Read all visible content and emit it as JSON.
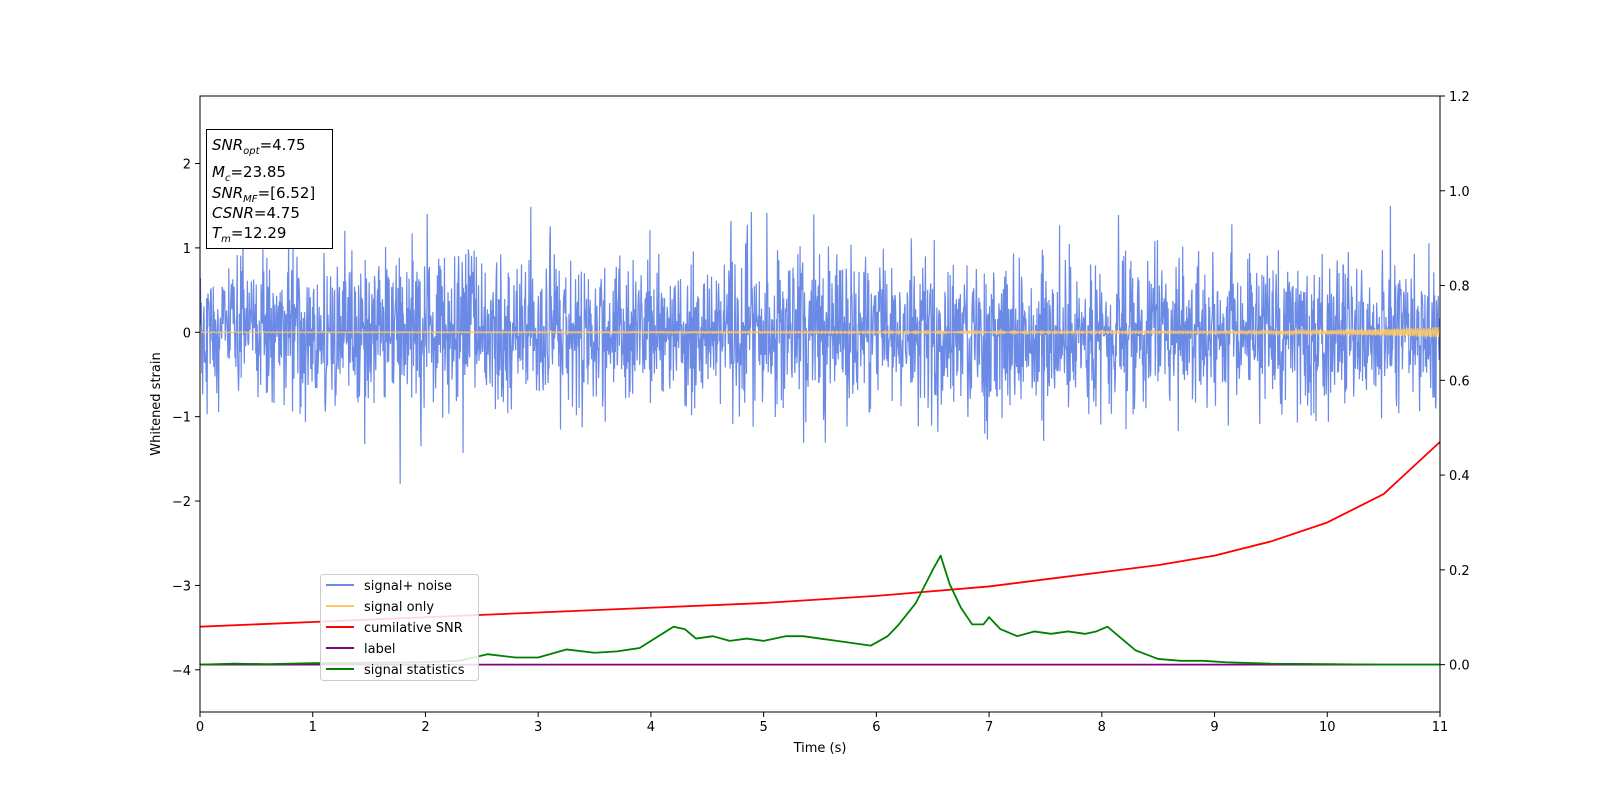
{
  "chart_data": {
    "type": "line",
    "xlabel": "Time (s)",
    "ylabel": "Whitened strain",
    "xlim": [
      0,
      11
    ],
    "ylim_left": [
      -4.5,
      2.8
    ],
    "ylim_right": [
      -0.1,
      1.2
    ],
    "x_ticks": [
      "0",
      "1",
      "2",
      "3",
      "4",
      "5",
      "6",
      "7",
      "8",
      "9",
      "10",
      "11"
    ],
    "y_left_ticks": [
      "2",
      "1",
      "0",
      "−1",
      "−2",
      "−3",
      "−4"
    ],
    "y_right_ticks": [
      "1.2",
      "1.0",
      "0.8",
      "0.6",
      "0.4",
      "0.2",
      "0.0"
    ],
    "legend_position": "lower-left",
    "legend": [
      {
        "label": "signal+ noise",
        "color": "#6b8ae6"
      },
      {
        "label": "signal only",
        "color": "#ffc864"
      },
      {
        "label": "cumilative SNR",
        "color": "#ff0000"
      },
      {
        "label": "label",
        "color": "#800080"
      },
      {
        "label": "signal statistics",
        "color": "#008000"
      }
    ],
    "annotation": {
      "snr_opt": {
        "sym": "SNR",
        "sub": "opt",
        "val": "=4.75"
      },
      "mc": {
        "sym": "M",
        "sub": "c",
        "val": "=23.85"
      },
      "snr_mf": {
        "sym": "SNR",
        "sub": "MF",
        "val": "=[6.52]"
      },
      "csnr": {
        "sym": "CSNR",
        "sub": "",
        "val": "=4.75"
      },
      "tm": {
        "sym": "T",
        "sub": "m",
        "val": "=12.29"
      }
    },
    "series": [
      {
        "name": "signal+ noise",
        "axis": "left",
        "kind": "noise",
        "color": "#6b8ae6",
        "std": 0.45,
        "x_range": [
          0,
          11
        ]
      },
      {
        "name": "signal only",
        "axis": "left",
        "color": "#ffc864",
        "x": [
          0,
          9,
          10,
          10.5,
          11
        ],
        "amplitude": [
          0.005,
          0.01,
          0.02,
          0.04,
          0.06
        ]
      },
      {
        "name": "cumilative SNR",
        "axis": "right",
        "color": "#ff0000",
        "x": [
          0,
          1,
          2,
          3,
          4,
          5,
          6,
          7,
          7.5,
          8,
          8.5,
          9,
          9.5,
          10,
          10.5,
          11
        ],
        "y": [
          0.08,
          0.09,
          0.1,
          0.11,
          0.12,
          0.13,
          0.145,
          0.165,
          0.18,
          0.195,
          0.21,
          0.23,
          0.26,
          0.3,
          0.36,
          0.47
        ]
      },
      {
        "name": "label",
        "axis": "right",
        "color": "#800080",
        "x": [
          0,
          11
        ],
        "y": [
          0.0,
          0.0
        ]
      },
      {
        "name": "signal statistics",
        "axis": "right",
        "color": "#008000",
        "x": [
          0,
          0.3,
          0.6,
          1.0,
          1.5,
          2.0,
          2.3,
          2.55,
          2.8,
          3.0,
          3.25,
          3.5,
          3.7,
          3.9,
          4.1,
          4.2,
          4.3,
          4.4,
          4.55,
          4.7,
          4.85,
          5.0,
          5.2,
          5.35,
          5.5,
          5.65,
          5.8,
          5.95,
          6.1,
          6.2,
          6.35,
          6.5,
          6.57,
          6.65,
          6.75,
          6.85,
          6.95,
          7.0,
          7.1,
          7.25,
          7.4,
          7.55,
          7.7,
          7.85,
          7.95,
          8.05,
          8.2,
          8.3,
          8.5,
          8.7,
          8.9,
          9.1,
          9.5,
          10.0,
          10.5,
          11.0
        ],
        "y": [
          0.0,
          0.002,
          0.001,
          0.003,
          0.004,
          0.005,
          0.008,
          0.022,
          0.015,
          0.015,
          0.032,
          0.025,
          0.028,
          0.035,
          0.065,
          0.08,
          0.075,
          0.055,
          0.06,
          0.05,
          0.055,
          0.05,
          0.06,
          0.06,
          0.055,
          0.05,
          0.045,
          0.04,
          0.06,
          0.085,
          0.13,
          0.2,
          0.23,
          0.17,
          0.12,
          0.085,
          0.085,
          0.1,
          0.075,
          0.06,
          0.07,
          0.065,
          0.07,
          0.065,
          0.07,
          0.08,
          0.05,
          0.03,
          0.012,
          0.008,
          0.008,
          0.005,
          0.002,
          0.001,
          0.0,
          0.0
        ]
      }
    ]
  }
}
